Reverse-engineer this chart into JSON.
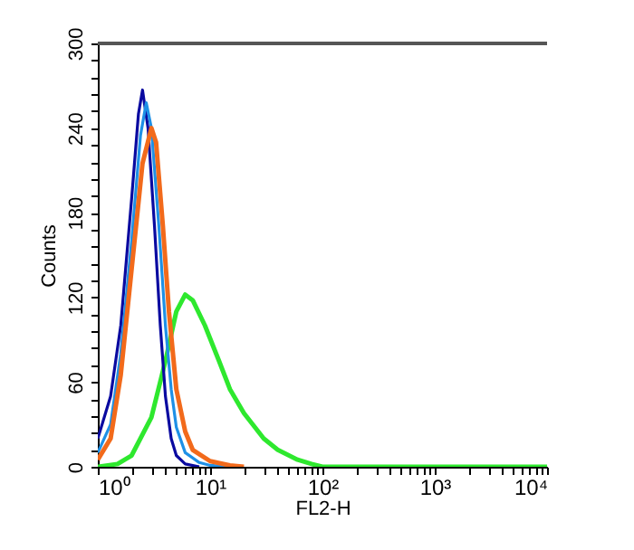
{
  "chart_data": {
    "type": "line",
    "xlabel": "FL2-H",
    "ylabel": "Counts",
    "log": "x",
    "grid": false,
    "xlim": [
      1,
      10000
    ],
    "ylim": [
      0,
      300
    ],
    "xticks": [
      {
        "value": 1,
        "label": "10⁰"
      },
      {
        "value": 2,
        "label": null
      },
      {
        "value": 3,
        "label": null
      },
      {
        "value": 4,
        "label": null
      },
      {
        "value": 5,
        "label": null
      },
      {
        "value": 6,
        "label": null
      },
      {
        "value": 7,
        "label": null
      },
      {
        "value": 8,
        "label": null
      },
      {
        "value": 9,
        "label": null
      },
      {
        "value": 10,
        "label": "10¹"
      },
      {
        "value": 20,
        "label": null
      },
      {
        "value": 30,
        "label": null
      },
      {
        "value": 40,
        "label": null
      },
      {
        "value": 50,
        "label": null
      },
      {
        "value": 60,
        "label": null
      },
      {
        "value": 70,
        "label": null
      },
      {
        "value": 80,
        "label": null
      },
      {
        "value": 90,
        "label": null
      },
      {
        "value": 100,
        "label": "10²"
      },
      {
        "value": 200,
        "label": null
      },
      {
        "value": 300,
        "label": null
      },
      {
        "value": 400,
        "label": null
      },
      {
        "value": 500,
        "label": null
      },
      {
        "value": 600,
        "label": null
      },
      {
        "value": 700,
        "label": null
      },
      {
        "value": 800,
        "label": null
      },
      {
        "value": 900,
        "label": null
      },
      {
        "value": 1000,
        "label": "10³"
      },
      {
        "value": 2000,
        "label": null
      },
      {
        "value": 3000,
        "label": null
      },
      {
        "value": 4000,
        "label": null
      },
      {
        "value": 5000,
        "label": null
      },
      {
        "value": 6000,
        "label": null
      },
      {
        "value": 7000,
        "label": null
      },
      {
        "value": 8000,
        "label": null
      },
      {
        "value": 9000,
        "label": null
      },
      {
        "value": 10000,
        "label": "10⁴"
      }
    ],
    "yticks": [
      0,
      {
        "value": 12,
        "label": null
      },
      {
        "value": 24,
        "label": null
      },
      {
        "value": 36,
        "label": null
      },
      {
        "value": 48,
        "label": null
      },
      60,
      {
        "value": 72,
        "label": null
      },
      {
        "value": 84,
        "label": null
      },
      {
        "value": 96,
        "label": null
      },
      {
        "value": 108,
        "label": null
      },
      120,
      {
        "value": 132,
        "label": null
      },
      {
        "value": 144,
        "label": null
      },
      {
        "value": 156,
        "label": null
      },
      {
        "value": 168,
        "label": null
      },
      180,
      {
        "value": 192,
        "label": null
      },
      {
        "value": 204,
        "label": null
      },
      {
        "value": 216,
        "label": null
      },
      {
        "value": 228,
        "label": null
      },
      240,
      {
        "value": 252,
        "label": null
      },
      {
        "value": 264,
        "label": null
      },
      {
        "value": 276,
        "label": null
      },
      {
        "value": 288,
        "label": null
      },
      300
    ],
    "series": [
      {
        "color": "#2ee82e",
        "x": [
          1,
          1.5,
          2,
          3,
          4,
          5,
          6,
          7,
          9,
          12,
          15,
          20,
          30,
          40,
          60,
          80,
          100,
          10000
        ],
        "values": [
          0,
          2,
          8,
          35,
          75,
          110,
          122,
          118,
          100,
          75,
          55,
          38,
          20,
          12,
          5,
          2,
          0,
          0
        ]
      },
      {
        "color": "#0a0aa0",
        "x": [
          1,
          1.3,
          1.6,
          2,
          2.3,
          2.5,
          2.8,
          3.2,
          3.6,
          4,
          4.5,
          5,
          6,
          8
        ],
        "values": [
          20,
          50,
          100,
          190,
          250,
          267,
          240,
          170,
          100,
          50,
          20,
          8,
          2,
          0
        ]
      },
      {
        "color": "#1e90e6",
        "x": [
          1,
          1.3,
          1.6,
          2,
          2.4,
          2.7,
          3,
          3.5,
          4,
          4.5,
          5,
          6,
          8,
          10,
          15
        ],
        "values": [
          10,
          30,
          80,
          160,
          235,
          258,
          240,
          170,
          100,
          55,
          28,
          10,
          3,
          1,
          0
        ]
      },
      {
        "color": "#f26a1b",
        "x": [
          1,
          1.3,
          1.6,
          2,
          2.5,
          3,
          3.3,
          3.8,
          4.3,
          5,
          6,
          7,
          10,
          15,
          20
        ],
        "values": [
          5,
          20,
          65,
          140,
          215,
          240,
          230,
          170,
          110,
          55,
          25,
          12,
          4,
          1,
          0
        ]
      }
    ]
  }
}
